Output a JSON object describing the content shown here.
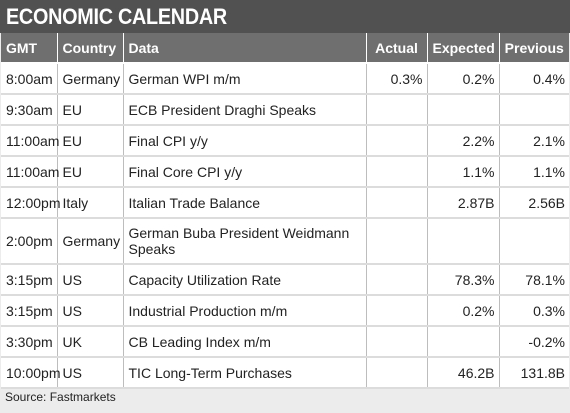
{
  "title": "ECONOMIC CALENDAR",
  "columns": {
    "gmt": "GMT",
    "country": "Country",
    "data": "Data",
    "actual": "Actual",
    "expected": "Expected",
    "previous": "Previous"
  },
  "rows": [
    {
      "gmt": "8:00am",
      "country": "Germany",
      "data": "German WPI m/m",
      "actual": "0.3%",
      "expected": "0.2%",
      "previous": "0.4%"
    },
    {
      "gmt": "9:30am",
      "country": "EU",
      "data": "ECB President Draghi Speaks",
      "actual": "",
      "expected": "",
      "previous": ""
    },
    {
      "gmt": "11:00am",
      "country": "EU",
      "data": "Final CPI y/y",
      "actual": "",
      "expected": "2.2%",
      "previous": "2.1%"
    },
    {
      "gmt": "11:00am",
      "country": "EU",
      "data": "Final Core CPI y/y",
      "actual": "",
      "expected": "1.1%",
      "previous": "1.1%"
    },
    {
      "gmt": "12:00pm",
      "country": "Italy",
      "data": "Italian Trade Balance",
      "actual": "",
      "expected": "2.87B",
      "previous": "2.56B"
    },
    {
      "gmt": "2:00pm",
      "country": "Germany",
      "data": "German Buba President Weidmann Speaks",
      "actual": "",
      "expected": "",
      "previous": ""
    },
    {
      "gmt": "3:15pm",
      "country": "US",
      "data": "Capacity Utilization Rate",
      "actual": "",
      "expected": "78.3%",
      "previous": "78.1%"
    },
    {
      "gmt": "3:15pm",
      "country": "US",
      "data": "Industrial Production m/m",
      "actual": "",
      "expected": "0.2%",
      "previous": "0.3%"
    },
    {
      "gmt": "3:30pm",
      "country": "UK",
      "data": "CB Leading Index m/m",
      "actual": "",
      "expected": "",
      "previous": "-0.2%"
    },
    {
      "gmt": "10:00pm",
      "country": "US",
      "data": "TIC Long-Term Purchases",
      "actual": "",
      "expected": "46.2B",
      "previous": "131.8B"
    }
  ],
  "source": "Source: Fastmarkets",
  "colors": {
    "title_bar": "#515151",
    "header_bg": "#6f6f6f",
    "frame_bg": "#ececec",
    "cell_bg": "#ffffff"
  }
}
